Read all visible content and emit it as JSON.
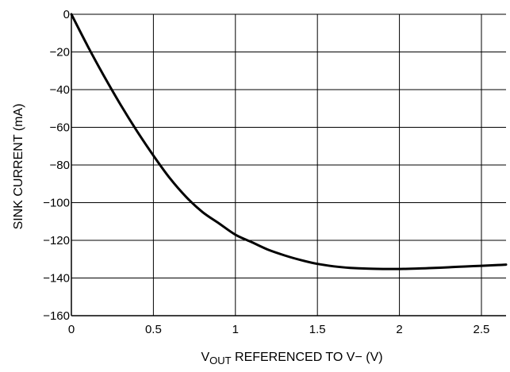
{
  "chart_data": {
    "type": "line",
    "title": "",
    "xlabel": {
      "main": "V",
      "subscript": "OUT",
      "rest": " REFERENCED TO V− (V)"
    },
    "ylabel": "SINK CURRENT (mA)",
    "xlim": [
      0,
      2.65
    ],
    "ylim": [
      -160,
      0
    ],
    "x_ticks": [
      0,
      0.5,
      1,
      1.5,
      2,
      2.5
    ],
    "x_tick_labels": [
      "0",
      "0.5",
      "1",
      "1.5",
      "2",
      "2.5"
    ],
    "y_ticks": [
      0,
      -20,
      -40,
      -60,
      -80,
      -100,
      -120,
      -140,
      -160
    ],
    "y_tick_labels": [
      "0",
      "−20",
      "−40",
      "−60",
      "−80",
      "−100",
      "−120",
      "−140",
      "−160"
    ],
    "grid": true,
    "series": [
      {
        "x": [
          0,
          0.1,
          0.2,
          0.3,
          0.4,
          0.5,
          0.6,
          0.7,
          0.8,
          0.9,
          1.0,
          1.1,
          1.2,
          1.3,
          1.4,
          1.5,
          1.6,
          1.7,
          1.8,
          1.9,
          2.0,
          2.1,
          2.2,
          2.3,
          2.4,
          2.5,
          2.6,
          2.65
        ],
        "y": [
          0,
          -17,
          -33,
          -48,
          -62,
          -75,
          -87,
          -97,
          -105,
          -111,
          -117,
          -121,
          -125,
          -128,
          -130.5,
          -132.5,
          -133.8,
          -134.6,
          -135,
          -135.2,
          -135.2,
          -135,
          -134.7,
          -134.3,
          -133.9,
          -133.5,
          -133.1,
          -132.9
        ]
      }
    ]
  }
}
